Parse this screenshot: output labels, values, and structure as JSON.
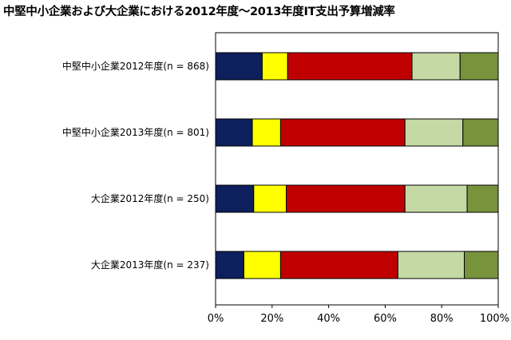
{
  "chart_data": {
    "type": "bar",
    "orientation": "horizontal",
    "stacked": true,
    "title": "中堅中小企業および大企業における2012年度〜2013年度IT支出予算増減率",
    "categories": [
      "中堅中小企業2012年度(n = 868)",
      "中堅中小企業2013年度(n = 801)",
      "大企業2012年度(n = 250)",
      "大企業2013年度(n = 237)"
    ],
    "series": [
      {
        "color": "#0d1f5c",
        "values": [
          16.5,
          13.0,
          13.5,
          10.0
        ]
      },
      {
        "color": "#ffff00",
        "values": [
          9.0,
          10.0,
          11.5,
          13.0
        ]
      },
      {
        "color": "#c00000",
        "values": [
          44.0,
          44.0,
          42.0,
          41.5
        ]
      },
      {
        "color": "#c4d9a3",
        "values": [
          17.0,
          20.5,
          22.0,
          23.5
        ]
      },
      {
        "color": "#77933c",
        "values": [
          13.5,
          12.5,
          11.0,
          12.0
        ]
      }
    ],
    "xlim": [
      0,
      100
    ],
    "xticks": [
      "0%",
      "20%",
      "40%",
      "60%",
      "80%",
      "100%"
    ],
    "grid": false,
    "legend": "none"
  }
}
